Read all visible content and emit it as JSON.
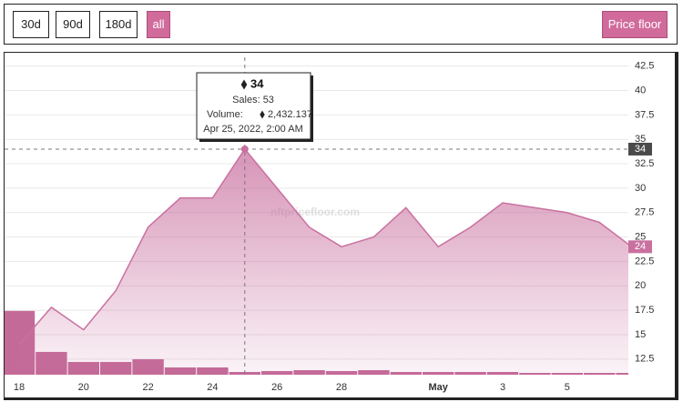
{
  "controls": {
    "ranges": [
      "30d",
      "90d",
      "180d",
      "all"
    ],
    "active": "all",
    "metric": "Price floor"
  },
  "chart_data": {
    "type": "line",
    "categories": [
      "18",
      null,
      "20",
      null,
      "22",
      null,
      "24",
      null,
      "26",
      null,
      "28",
      null,
      null,
      "May",
      null,
      "3",
      null,
      "5",
      null,
      null
    ],
    "series": [
      {
        "name": "Price floor",
        "color": "#c9709f",
        "values": [
          14,
          17.8,
          15.5,
          19.5,
          26,
          29,
          29,
          34,
          30,
          26,
          24,
          25,
          28,
          24,
          26,
          28.5,
          28,
          27.5,
          26.5,
          24
        ]
      },
      {
        "name": "Volume",
        "color": "#c46a98",
        "axis": "y2",
        "type": "bar",
        "values": [
          56700,
          20250,
          11340,
          11340,
          13770,
          6480,
          6480,
          2432.137,
          3240,
          4050,
          3240,
          4050,
          2430,
          2430,
          2430,
          2430,
          1620,
          1620,
          1620,
          1620
        ]
      }
    ],
    "ylim": [
      10.9,
      43.4
    ],
    "yticks": [
      12.5,
      15,
      17.5,
      20,
      22.5,
      25,
      27.5,
      30,
      32.5,
      35,
      37.5,
      40,
      42.5
    ],
    "y2lim": [
      0,
      282000
    ],
    "grid": true,
    "watermark": "nftpricefloor.com",
    "tooltip": {
      "index": 7,
      "price": 34,
      "sales": "Sales: 53",
      "volume_label": "Volume:",
      "volume": "2,432.137",
      "date": "Apr 25, 2022, 2:00 AM"
    }
  }
}
